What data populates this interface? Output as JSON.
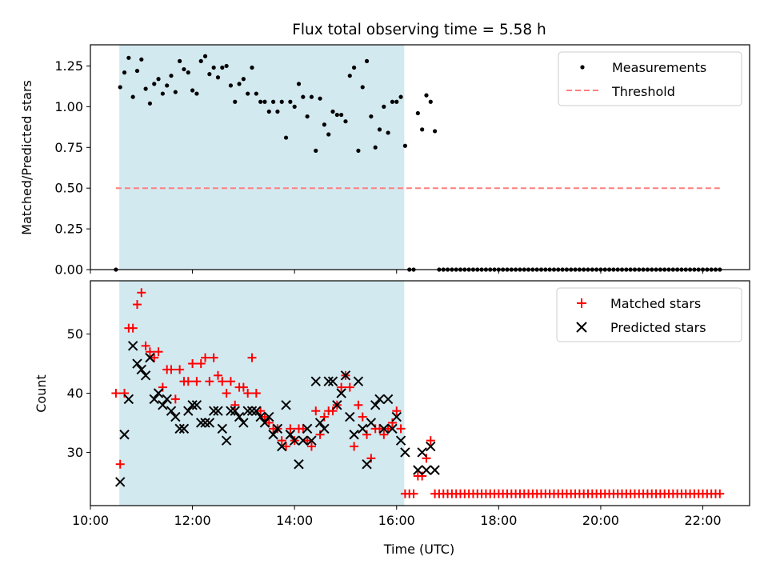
{
  "chart_data": [
    {
      "type": "scatter",
      "title": "Flux total observing time = 5.58 h",
      "xlabel": "",
      "ylabel": "Matched/Predicted stars",
      "ylim": [
        0,
        1.38
      ],
      "xlim": [
        "10:00",
        "22:55"
      ],
      "x_ticks": [
        "10:00",
        "12:00",
        "14:00",
        "16:00",
        "18:00",
        "20:00",
        "22:00"
      ],
      "y_ticks": [
        "0.00",
        "0.25",
        "0.50",
        "0.75",
        "1.00",
        "1.25"
      ],
      "legend_position": "top-right",
      "highlight_span": {
        "start": "10:34",
        "end": "16:09",
        "color": "#d3e9f0"
      },
      "series": [
        {
          "name": "Measurements",
          "marker": "dot",
          "color": "#000000",
          "points": [
            [
              "10:30",
              0.0
            ],
            [
              "10:35",
              1.12
            ],
            [
              "10:40",
              1.21
            ],
            [
              "10:45",
              1.3
            ],
            [
              "10:50",
              1.06
            ],
            [
              "10:55",
              1.22
            ],
            [
              "11:00",
              1.29
            ],
            [
              "11:05",
              1.11
            ],
            [
              "11:10",
              1.02
            ],
            [
              "11:15",
              1.14
            ],
            [
              "11:20",
              1.17
            ],
            [
              "11:25",
              1.08
            ],
            [
              "11:30",
              1.13
            ],
            [
              "11:35",
              1.19
            ],
            [
              "11:40",
              1.09
            ],
            [
              "11:45",
              1.28
            ],
            [
              "11:50",
              1.23
            ],
            [
              "11:55",
              1.21
            ],
            [
              "12:00",
              1.1
            ],
            [
              "12:05",
              1.08
            ],
            [
              "12:10",
              1.28
            ],
            [
              "12:15",
              1.31
            ],
            [
              "12:20",
              1.2
            ],
            [
              "12:25",
              1.24
            ],
            [
              "12:30",
              1.18
            ],
            [
              "12:35",
              1.24
            ],
            [
              "12:40",
              1.25
            ],
            [
              "12:45",
              1.13
            ],
            [
              "12:50",
              1.03
            ],
            [
              "12:55",
              1.14
            ],
            [
              "13:00",
              1.17
            ],
            [
              "13:05",
              1.08
            ],
            [
              "13:10",
              1.24
            ],
            [
              "13:15",
              1.08
            ],
            [
              "13:20",
              1.03
            ],
            [
              "13:25",
              1.03
            ],
            [
              "13:30",
              0.97
            ],
            [
              "13:35",
              1.03
            ],
            [
              "13:40",
              0.97
            ],
            [
              "13:45",
              1.03
            ],
            [
              "13:50",
              0.81
            ],
            [
              "13:55",
              1.03
            ],
            [
              "14:00",
              1.0
            ],
            [
              "14:05",
              1.14
            ],
            [
              "14:10",
              1.06
            ],
            [
              "14:15",
              0.94
            ],
            [
              "14:20",
              1.06
            ],
            [
              "14:25",
              0.73
            ],
            [
              "14:30",
              1.05
            ],
            [
              "14:35",
              0.89
            ],
            [
              "14:40",
              0.83
            ],
            [
              "14:45",
              0.97
            ],
            [
              "14:50",
              0.95
            ],
            [
              "14:55",
              0.95
            ],
            [
              "15:00",
              0.91
            ],
            [
              "15:05",
              1.19
            ],
            [
              "15:10",
              1.24
            ],
            [
              "15:15",
              0.73
            ],
            [
              "15:20",
              1.12
            ],
            [
              "15:25",
              1.28
            ],
            [
              "15:30",
              0.94
            ],
            [
              "15:35",
              0.75
            ],
            [
              "15:40",
              0.86
            ],
            [
              "15:45",
              1.0
            ],
            [
              "15:50",
              0.84
            ],
            [
              "15:55",
              1.03
            ],
            [
              "16:00",
              1.03
            ],
            [
              "16:05",
              1.06
            ],
            [
              "16:10",
              0.76
            ],
            [
              "16:15",
              0.0
            ],
            [
              "16:20",
              0.0
            ],
            [
              "16:25",
              0.96
            ],
            [
              "16:30",
              0.86
            ],
            [
              "16:35",
              1.07
            ],
            [
              "16:40",
              1.03
            ],
            [
              "16:45",
              0.85
            ]
          ],
          "zero_run": {
            "start": "16:50",
            "end": "22:20",
            "step_minutes": 5,
            "value": 0.0
          }
        },
        {
          "name": "Threshold",
          "style": "dashed",
          "color": "#ff7f7f",
          "points": [
            [
              "10:30",
              0.5
            ],
            [
              "22:20",
              0.5
            ]
          ]
        }
      ]
    },
    {
      "type": "scatter",
      "title": "",
      "xlabel": "Time (UTC)",
      "ylabel": "Count",
      "ylim": [
        21,
        59
      ],
      "xlim": [
        "10:00",
        "22:55"
      ],
      "x_ticks": [
        "10:00",
        "12:00",
        "14:00",
        "16:00",
        "18:00",
        "20:00",
        "22:00"
      ],
      "y_ticks": [
        "30",
        "40",
        "50"
      ],
      "legend_position": "top-right",
      "highlight_span": {
        "start": "10:34",
        "end": "16:09",
        "color": "#d3e9f0"
      },
      "series": [
        {
          "name": "Matched stars",
          "marker": "plus",
          "color": "#ff0000",
          "points": [
            [
              "10:30",
              40
            ],
            [
              "10:35",
              28
            ],
            [
              "10:40",
              40
            ],
            [
              "10:45",
              51
            ],
            [
              "10:50",
              51
            ],
            [
              "10:55",
              55
            ],
            [
              "11:00",
              57
            ],
            [
              "11:05",
              48
            ],
            [
              "11:10",
              47
            ],
            [
              "11:15",
              46
            ],
            [
              "11:20",
              47
            ],
            [
              "11:25",
              41
            ],
            [
              "11:30",
              44
            ],
            [
              "11:35",
              44
            ],
            [
              "11:40",
              39
            ],
            [
              "11:45",
              44
            ],
            [
              "11:50",
              42
            ],
            [
              "11:55",
              42
            ],
            [
              "12:00",
              45
            ],
            [
              "12:05",
              42
            ],
            [
              "12:10",
              45
            ],
            [
              "12:15",
              46
            ],
            [
              "12:20",
              42
            ],
            [
              "12:25",
              46
            ],
            [
              "12:30",
              43
            ],
            [
              "12:35",
              42
            ],
            [
              "12:40",
              40
            ],
            [
              "12:45",
              42
            ],
            [
              "12:50",
              38
            ],
            [
              "12:55",
              41
            ],
            [
              "13:00",
              41
            ],
            [
              "13:05",
              40
            ],
            [
              "13:10",
              46
            ],
            [
              "13:15",
              40
            ],
            [
              "13:20",
              37
            ],
            [
              "13:25",
              36
            ],
            [
              "13:30",
              35
            ],
            [
              "13:35",
              34
            ],
            [
              "13:40",
              34
            ],
            [
              "13:45",
              32
            ],
            [
              "13:50",
              31
            ],
            [
              "13:55",
              34
            ],
            [
              "14:00",
              32
            ],
            [
              "14:05",
              34
            ],
            [
              "14:10",
              34
            ],
            [
              "14:15",
              32
            ],
            [
              "14:20",
              31
            ],
            [
              "14:25",
              37
            ],
            [
              "14:30",
              33
            ],
            [
              "14:35",
              36
            ],
            [
              "14:40",
              37
            ],
            [
              "14:45",
              37
            ],
            [
              "14:50",
              38
            ],
            [
              "14:55",
              41
            ],
            [
              "15:00",
              43
            ],
            [
              "15:05",
              41
            ],
            [
              "15:10",
              31
            ],
            [
              "15:15",
              38
            ],
            [
              "15:20",
              36
            ],
            [
              "15:25",
              33
            ],
            [
              "15:30",
              29
            ],
            [
              "15:35",
              34
            ],
            [
              "15:40",
              34
            ],
            [
              "15:45",
              33
            ],
            [
              "15:50",
              34
            ],
            [
              "15:55",
              35
            ],
            [
              "16:00",
              37
            ],
            [
              "16:05",
              34
            ],
            [
              "16:10",
              23
            ],
            [
              "16:15",
              23
            ],
            [
              "16:20",
              23
            ],
            [
              "16:25",
              26
            ],
            [
              "16:30",
              26
            ],
            [
              "16:35",
              29
            ],
            [
              "16:40",
              32
            ],
            [
              "16:45",
              23
            ]
          ],
          "constant_run": {
            "start": "16:50",
            "end": "22:20",
            "step_minutes": 5,
            "value": 23
          }
        },
        {
          "name": "Predicted stars",
          "marker": "x",
          "color": "#000000",
          "points": [
            [
              "10:35",
              25
            ],
            [
              "10:40",
              33
            ],
            [
              "10:45",
              39
            ],
            [
              "10:50",
              48
            ],
            [
              "10:55",
              45
            ],
            [
              "11:00",
              44
            ],
            [
              "11:05",
              43
            ],
            [
              "11:10",
              46
            ],
            [
              "11:15",
              39
            ],
            [
              "11:20",
              40
            ],
            [
              "11:25",
              38
            ],
            [
              "11:30",
              39
            ],
            [
              "11:35",
              37
            ],
            [
              "11:40",
              36
            ],
            [
              "11:45",
              34
            ],
            [
              "11:50",
              34
            ],
            [
              "11:55",
              37
            ],
            [
              "12:00",
              38
            ],
            [
              "12:05",
              38
            ],
            [
              "12:10",
              35
            ],
            [
              "12:15",
              35
            ],
            [
              "12:20",
              35
            ],
            [
              "12:25",
              37
            ],
            [
              "12:30",
              37
            ],
            [
              "12:35",
              34
            ],
            [
              "12:40",
              32
            ],
            [
              "12:45",
              37
            ],
            [
              "12:50",
              37
            ],
            [
              "12:55",
              36
            ],
            [
              "13:00",
              35
            ],
            [
              "13:05",
              37
            ],
            [
              "13:10",
              37
            ],
            [
              "13:15",
              37
            ],
            [
              "13:20",
              36
            ],
            [
              "13:25",
              35
            ],
            [
              "13:30",
              36
            ],
            [
              "13:35",
              33
            ],
            [
              "13:40",
              34
            ],
            [
              "13:45",
              31
            ],
            [
              "13:50",
              38
            ],
            [
              "13:55",
              33
            ],
            [
              "14:00",
              32
            ],
            [
              "14:05",
              28
            ],
            [
              "14:10",
              32
            ],
            [
              "14:15",
              34
            ],
            [
              "14:20",
              32
            ],
            [
              "14:25",
              42
            ],
            [
              "14:30",
              35
            ],
            [
              "14:35",
              34
            ],
            [
              "14:40",
              42
            ],
            [
              "14:45",
              42
            ],
            [
              "14:50",
              38
            ],
            [
              "14:55",
              40
            ],
            [
              "15:00",
              43
            ],
            [
              "15:05",
              36
            ],
            [
              "15:10",
              33
            ],
            [
              "15:15",
              42
            ],
            [
              "15:20",
              34
            ],
            [
              "15:25",
              28
            ],
            [
              "15:30",
              35
            ],
            [
              "15:35",
              38
            ],
            [
              "15:40",
              39
            ],
            [
              "15:45",
              34
            ],
            [
              "15:50",
              39
            ],
            [
              "15:55",
              34
            ],
            [
              "16:00",
              36
            ],
            [
              "16:05",
              32
            ],
            [
              "16:10",
              30
            ],
            [
              "16:25",
              27
            ],
            [
              "16:30",
              30
            ],
            [
              "16:35",
              27
            ],
            [
              "16:40",
              31
            ],
            [
              "16:45",
              27
            ]
          ]
        }
      ]
    }
  ]
}
